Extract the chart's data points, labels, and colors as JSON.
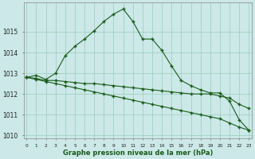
{
  "xlabel": "Graphe pression niveau de la mer (hPa)",
  "background_color": "#cce8e8",
  "grid_color": "#99ccbb",
  "line_color": "#1a5c1a",
  "x_values": [
    0,
    1,
    2,
    3,
    4,
    5,
    6,
    7,
    8,
    9,
    10,
    11,
    12,
    13,
    14,
    15,
    16,
    17,
    18,
    19,
    20,
    21,
    22,
    23
  ],
  "line_peak": [
    1012.8,
    1012.9,
    1012.7,
    1013.0,
    1013.85,
    1014.3,
    1014.65,
    1015.05,
    1015.5,
    1015.85,
    1016.1,
    1015.5,
    1014.65,
    1014.65,
    1014.1,
    1013.35,
    1012.65,
    1012.4,
    1012.2,
    1012.05,
    1012.05,
    1011.65,
    1010.75,
    1010.25
  ],
  "line_flat": [
    1012.8,
    1012.75,
    1012.65,
    1012.65,
    1012.6,
    1012.55,
    1012.5,
    1012.5,
    1012.45,
    1012.4,
    1012.35,
    1012.3,
    1012.25,
    1012.2,
    1012.15,
    1012.1,
    1012.05,
    1012.0,
    1012.0,
    1012.0,
    1011.9,
    1011.8,
    1011.5,
    1011.3
  ],
  "line_diag": [
    1012.8,
    1012.7,
    1012.6,
    1012.5,
    1012.4,
    1012.3,
    1012.2,
    1012.1,
    1012.0,
    1011.9,
    1011.8,
    1011.7,
    1011.6,
    1011.5,
    1011.4,
    1011.3,
    1011.2,
    1011.1,
    1011.0,
    1010.9,
    1010.8,
    1010.6,
    1010.4,
    1010.25
  ],
  "ylim": [
    1009.85,
    1016.4
  ],
  "yticks": [
    1010,
    1011,
    1012,
    1013,
    1014,
    1015
  ],
  "xlim": [
    -0.3,
    23.3
  ]
}
